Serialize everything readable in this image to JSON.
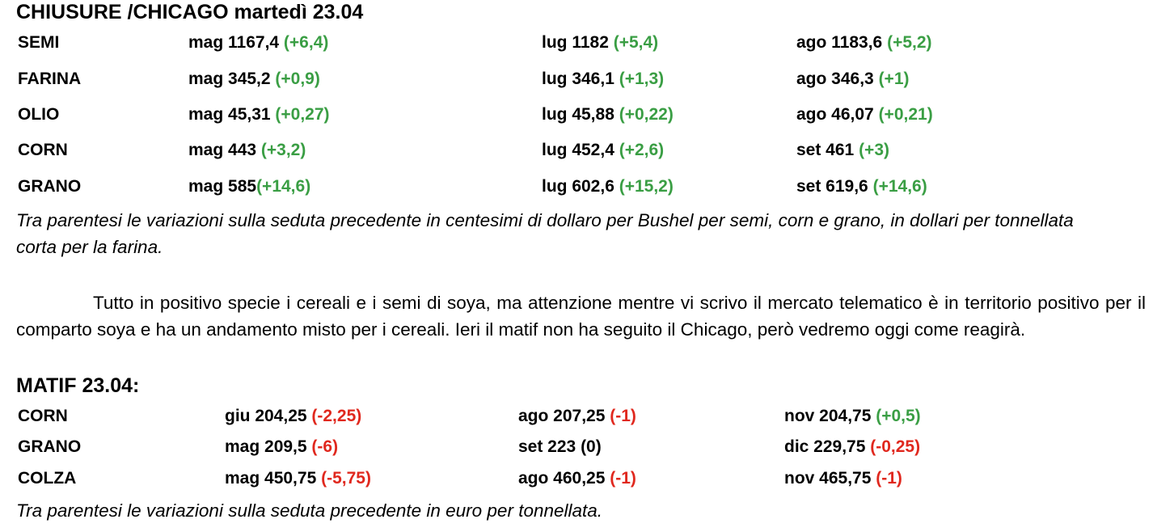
{
  "chicago": {
    "title": "CHIUSURE /CHICAGO martedì 23.04",
    "rows": [
      {
        "name": "SEMI",
        "cells": [
          {
            "contract": "mag 1167,4 ",
            "change": "(+6,4)"
          },
          {
            "contract": "lug 1182 ",
            "change": "(+5,4)"
          },
          {
            "contract": "ago 1183,6 ",
            "change": "(+5,2)"
          }
        ]
      },
      {
        "name": "FARINA",
        "cells": [
          {
            "contract": "mag 345,2 ",
            "change": "(+0,9)"
          },
          {
            "contract": "lug 346,1 ",
            "change": "(+1,3)"
          },
          {
            "contract": "ago 346,3 ",
            "change": "(+1)"
          }
        ]
      },
      {
        "name": "OLIO",
        "cells": [
          {
            "contract": "mag 45,31 ",
            "change": "(+0,27)"
          },
          {
            "contract": "lug 45,88 ",
            "change": "(+0,22)"
          },
          {
            "contract": "ago 46,07 ",
            "change": "(+0,21)"
          }
        ]
      },
      {
        "name": "CORN",
        "cells": [
          {
            "contract": "mag 443 ",
            "change": "(+3,2)"
          },
          {
            "contract": "lug 452,4 ",
            "change": "(+2,6)"
          },
          {
            "contract": "set 461 ",
            "change": "(+3)"
          }
        ]
      },
      {
        "name": "GRANO",
        "cells": [
          {
            "contract": "mag 585",
            "change": "(+14,6)"
          },
          {
            "contract": "lug 602,6 ",
            "change": "(+15,2)"
          },
          {
            "contract": "set 619,6 ",
            "change": "(+14,6)"
          }
        ]
      }
    ],
    "note": "Tra parentesi le variazioni sulla seduta precedente in centesimi di dollaro per Bushel per semi, corn e grano, in dollari per tonnellata corta per la farina."
  },
  "paragraph": "Tutto in positivo specie i cereali e i semi di soya, ma attenzione mentre vi scrivo il mercato telematico è in territorio positivo per il comparto soya e ha un andamento misto per i cereali.  Ieri il matif non ha seguito il Chicago, però vedremo oggi come reagirà.",
  "matif": {
    "title": "MATIF 23.04:",
    "rows": [
      {
        "name": "CORN",
        "cells": [
          {
            "contract": "giu 204,25 ",
            "change": "(-2,25)"
          },
          {
            "contract": "ago 207,25 ",
            "change": "(-1)"
          },
          {
            "contract": "nov 204,75 ",
            "change": "(+0,5)"
          }
        ]
      },
      {
        "name": "GRANO",
        "cells": [
          {
            "contract": "mag 209,5 ",
            "change": "(-6)"
          },
          {
            "contract": "set 223 ",
            "change": "(0)"
          },
          {
            "contract": "dic 229,75 ",
            "change": "(-0,25)"
          }
        ]
      },
      {
        "name": "COLZA",
        "cells": [
          {
            "contract": "mag 450,75 ",
            "change": "(-5,75)"
          },
          {
            "contract": "ago 460,25 ",
            "change": "(-1)"
          },
          {
            "contract": "nov 465,75 ",
            "change": "(-1)"
          }
        ]
      }
    ],
    "note": "Tra parentesi le variazioni sulla seduta precedente in euro per tonnellata."
  }
}
